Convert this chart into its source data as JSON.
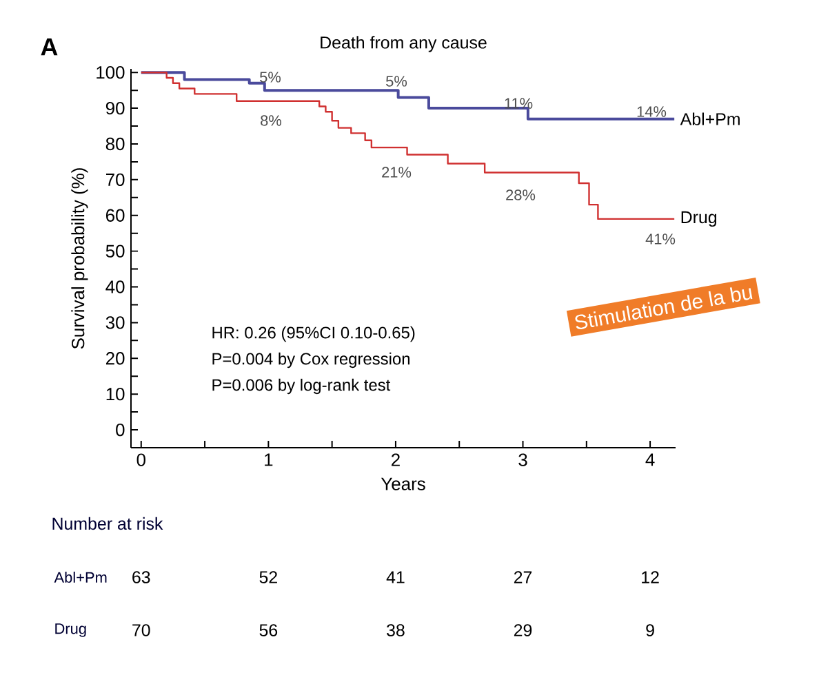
{
  "chart_data": {
    "type": "step",
    "title": "Death from any cause",
    "xlabel": "Years",
    "ylabel": "Survival probability (%)",
    "xlim": [
      -0.08,
      4.2
    ],
    "ylim": [
      -5,
      101
    ],
    "xticks": [
      0,
      {
        "value": 0.5,
        "label": null
      },
      1,
      {
        "value": 1.5,
        "label": null
      },
      2,
      {
        "value": 2.5,
        "label": null
      },
      3,
      {
        "value": 3.5,
        "label": null
      },
      4
    ],
    "yticks": [
      0,
      {
        "value": 5,
        "label": null
      },
      10,
      {
        "value": 15,
        "label": null
      },
      20,
      {
        "value": 25,
        "label": null
      },
      30,
      {
        "value": 35,
        "label": null
      },
      40,
      {
        "value": 45,
        "label": null
      },
      50,
      {
        "value": 55,
        "label": null
      },
      60,
      {
        "value": 65,
        "label": null
      },
      70,
      {
        "value": 75,
        "label": null
      },
      80,
      {
        "value": 85,
        "label": null
      },
      90,
      {
        "value": 95,
        "label": null
      },
      100
    ],
    "series": [
      {
        "name": "Abl+Pm",
        "color": "#4a4a9c",
        "x": [
          0,
          0.34,
          0.85,
          0.97,
          2.02,
          2.26,
          3.04,
          4.19
        ],
        "values": [
          100,
          98,
          97,
          95,
          93,
          90,
          87,
          87
        ]
      },
      {
        "name": "Drug",
        "color": "#d03030",
        "x": [
          0,
          0.2,
          0.25,
          0.3,
          0.42,
          0.75,
          1.4,
          1.45,
          1.5,
          1.55,
          1.65,
          1.76,
          1.81,
          2.09,
          2.41,
          2.7,
          3.44,
          3.52,
          3.59,
          4.19
        ],
        "values": [
          100,
          98.5,
          97,
          95.5,
          94,
          92,
          90.5,
          89,
          86.5,
          84.5,
          83,
          81,
          79,
          77,
          74.5,
          72,
          69,
          63,
          59,
          59
        ]
      }
    ],
    "annotations": [
      "A",
      "HR: 0.26 (95%CI 0.10-0.65)",
      "P=0.004 by Cox regression",
      "P=0.006 by log-rank test",
      "Number at risk",
      "Abl+Pm",
      "63",
      "52",
      "41",
      "27",
      "12",
      "Drug",
      "70",
      "56",
      "38",
      "29",
      "9",
      "Stimulation de la bu",
      "5%",
      "5%",
      "11%",
      "14%",
      "8%",
      "21%",
      "28%",
      "41%"
    ]
  }
}
